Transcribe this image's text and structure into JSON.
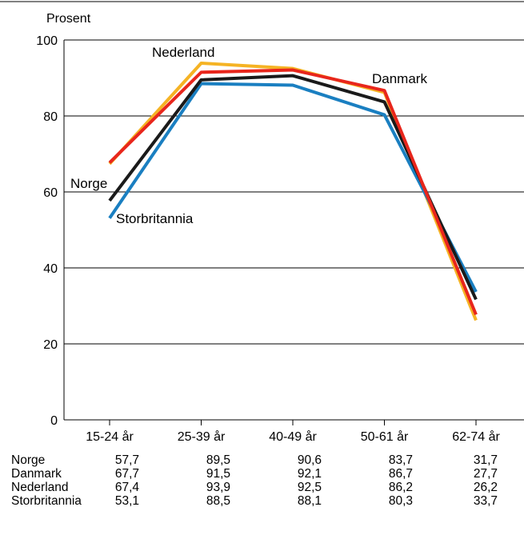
{
  "chart_data": {
    "type": "line",
    "ylabel": "Prosent",
    "ylim": [
      0,
      100
    ],
    "yticks": [
      0,
      20,
      40,
      60,
      80,
      100
    ],
    "grid": true,
    "categories": [
      "15-24 år",
      "25-39 år",
      "40-49 år",
      "50-61 år",
      "62-74 år"
    ],
    "series": [
      {
        "name": "Norge",
        "values": [
          57.7,
          89.5,
          90.6,
          83.7,
          31.7
        ],
        "color": "#1a1a1a"
      },
      {
        "name": "Danmark",
        "values": [
          67.7,
          91.5,
          92.1,
          86.7,
          27.7
        ],
        "color": "#e8261c"
      },
      {
        "name": "Nederland",
        "values": [
          67.4,
          93.9,
          92.5,
          86.2,
          26.2
        ],
        "color": "#f5b324"
      },
      {
        "name": "Storbritannia",
        "values": [
          53.1,
          88.5,
          88.1,
          80.3,
          33.7
        ],
        "color": "#1a7fc1"
      }
    ],
    "table": {
      "rows": [
        {
          "name": "Norge",
          "values": [
            "57,7",
            "89,5",
            "90,6",
            "83,7",
            "31,7"
          ]
        },
        {
          "name": "Danmark",
          "values": [
            "67,7",
            "91,5",
            "92,1",
            "86,7",
            "27,7"
          ]
        },
        {
          "name": "Nederland",
          "values": [
            "67,4",
            "93,9",
            "92,5",
            "86,2",
            "26,2"
          ]
        },
        {
          "name": "Storbritannia",
          "values": [
            "53,1",
            "88,5",
            "88,1",
            "80,3",
            "33,7"
          ]
        }
      ]
    }
  }
}
